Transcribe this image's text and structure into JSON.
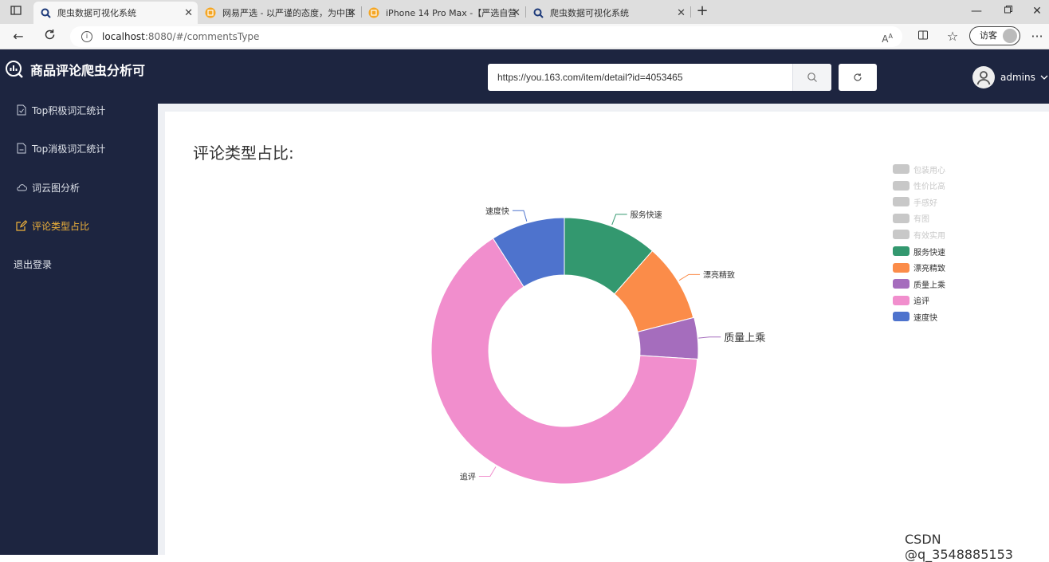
{
  "browser": {
    "tabs": [
      {
        "title": "爬虫数据可视化系统",
        "icon": "search-icon",
        "active": true
      },
      {
        "title": "网易严选 - 以严谨的态度，为中国",
        "icon": "netease-icon",
        "active": false
      },
      {
        "title": "iPhone 14 Pro Max -【严选自营",
        "icon": "netease-icon",
        "active": false
      },
      {
        "title": "爬虫数据可视化系统",
        "icon": "search-icon",
        "active": false
      }
    ],
    "url_host": "localhost",
    "url_path": ":8080/#/commentsType",
    "guest_label": "访客"
  },
  "header": {
    "app_title": "商品评论爬虫分析可",
    "search_value": "https://you.163.com/item/detail?id=4053465",
    "user_name": "admins"
  },
  "sidebar": {
    "items": [
      {
        "label": "Top积极词汇统计",
        "icon": "document-icon",
        "active": false
      },
      {
        "label": "Top消极词汇统计",
        "icon": "document-icon",
        "active": false
      },
      {
        "label": "词云图分析",
        "icon": "cloud-icon",
        "active": false
      },
      {
        "label": "评论类型占比",
        "icon": "edit-icon",
        "active": true
      }
    ],
    "logout_label": "退出登录"
  },
  "main": {
    "title": "评论类型占比:"
  },
  "chart_data": {
    "type": "pie",
    "variant": "donut",
    "title": "评论类型占比:",
    "legend_position": "right",
    "categories": [
      "包装用心",
      "性价比高",
      "手感好",
      "有图",
      "有效实用",
      "服务快速",
      "漂亮精致",
      "质量上乘",
      "追评",
      "速度快"
    ],
    "values": [
      0,
      0,
      0,
      0,
      0,
      11.5,
      9.5,
      5,
      65,
      9
    ],
    "hidden": [
      "包装用心",
      "性价比高",
      "手感好",
      "有图",
      "有效实用"
    ],
    "colors": [
      "#c8c8c8",
      "#c8c8c8",
      "#c8c8c8",
      "#c8c8c8",
      "#c8c8c8",
      "#33986f",
      "#fb8c49",
      "#a56dbd",
      "#f18ecd",
      "#4e73cd"
    ],
    "highlighted": "质量上乘"
  },
  "watermark": "CSDN @q_3548885153"
}
